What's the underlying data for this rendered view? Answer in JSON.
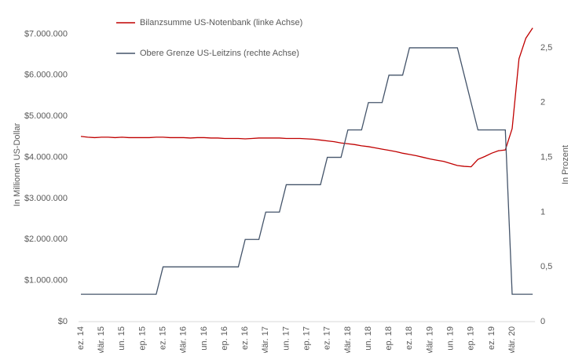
{
  "chart_data": {
    "type": "line",
    "y_label": "In Millionen US-Dollar",
    "y2_label": "In Prozent",
    "categories": [
      "ez. 14",
      null,
      null,
      "Mär. 15",
      null,
      null,
      "un. 15",
      null,
      null,
      "ep. 15",
      null,
      null,
      "ez. 15",
      null,
      null,
      "Mär. 16",
      null,
      null,
      "un. 16",
      null,
      null,
      "ep. 16",
      null,
      null,
      "ez. 16",
      null,
      null,
      "Mär. 17",
      null,
      null,
      "un. 17",
      null,
      null,
      "ep. 17",
      null,
      null,
      "ez. 17",
      null,
      null,
      "Mär. 18",
      null,
      null,
      "un. 18",
      null,
      null,
      "ep. 18",
      null,
      null,
      "ez. 18",
      null,
      null,
      "Mär. 19",
      null,
      null,
      "un. 19",
      null,
      null,
      "ep. 19",
      null,
      null,
      "ez. 19",
      null,
      null,
      "Mär. 20",
      null,
      null,
      null
    ],
    "series": [
      {
        "name": "Bilanzsumme US-Notenbank (linke Achse)",
        "color": "#c00000",
        "axis": "y",
        "values": [
          4510000,
          4490000,
          4480000,
          4490000,
          4490000,
          4480000,
          4490000,
          4480000,
          4480000,
          4480000,
          4480000,
          4490000,
          4490000,
          4480000,
          4480000,
          4480000,
          4470000,
          4480000,
          4480000,
          4470000,
          4470000,
          4460000,
          4460000,
          4460000,
          4450000,
          4460000,
          4470000,
          4470000,
          4470000,
          4470000,
          4460000,
          4460000,
          4460000,
          4450000,
          4440000,
          4420000,
          4400000,
          4380000,
          4350000,
          4330000,
          4310000,
          4280000,
          4260000,
          4230000,
          4200000,
          4170000,
          4140000,
          4100000,
          4070000,
          4040000,
          4000000,
          3960000,
          3930000,
          3900000,
          3850000,
          3800000,
          3780000,
          3770000,
          3950000,
          4020000,
          4100000,
          4160000,
          4180000,
          4700000,
          6400000,
          6900000,
          7150000
        ]
      },
      {
        "name": "Obere Grenze US-Leitzins (rechte Achse)",
        "color": "#44546a",
        "axis": "y2",
        "values": [
          0.25,
          0.25,
          0.25,
          0.25,
          0.25,
          0.25,
          0.25,
          0.25,
          0.25,
          0.25,
          0.25,
          0.25,
          0.5,
          0.5,
          0.5,
          0.5,
          0.5,
          0.5,
          0.5,
          0.5,
          0.5,
          0.5,
          0.5,
          0.5,
          0.75,
          0.75,
          0.75,
          1,
          1,
          1,
          1.25,
          1.25,
          1.25,
          1.25,
          1.25,
          1.25,
          1.5,
          1.5,
          1.5,
          1.75,
          1.75,
          1.75,
          2,
          2,
          2,
          2.25,
          2.25,
          2.25,
          2.5,
          2.5,
          2.5,
          2.5,
          2.5,
          2.5,
          2.5,
          2.5,
          2.25,
          2,
          1.75,
          1.75,
          1.75,
          1.75,
          1.75,
          0.25,
          0.25,
          0.25,
          0.25
        ]
      }
    ],
    "ylim": [
      0,
      7200000
    ],
    "yticks": [
      {
        "value": 0,
        "label": "$0"
      },
      {
        "value": 1000000,
        "label": "$1.000.000"
      },
      {
        "value": 2000000,
        "label": "$2.000.000"
      },
      {
        "value": 3000000,
        "label": "$3.000.000"
      },
      {
        "value": 4000000,
        "label": "$4.000.000"
      },
      {
        "value": 5000000,
        "label": "$5.000.000"
      },
      {
        "value": 6000000,
        "label": "$6.000.000"
      },
      {
        "value": 7000000,
        "label": "$7.000.000"
      }
    ],
    "y2lim": [
      0,
      2.7
    ],
    "y2ticks": [
      0,
      {
        "value": 0.5,
        "label": "0,5"
      },
      1,
      {
        "value": 1.5,
        "label": "1,5"
      },
      2,
      {
        "value": 2.5,
        "label": "2,5"
      }
    ],
    "grid": false
  }
}
